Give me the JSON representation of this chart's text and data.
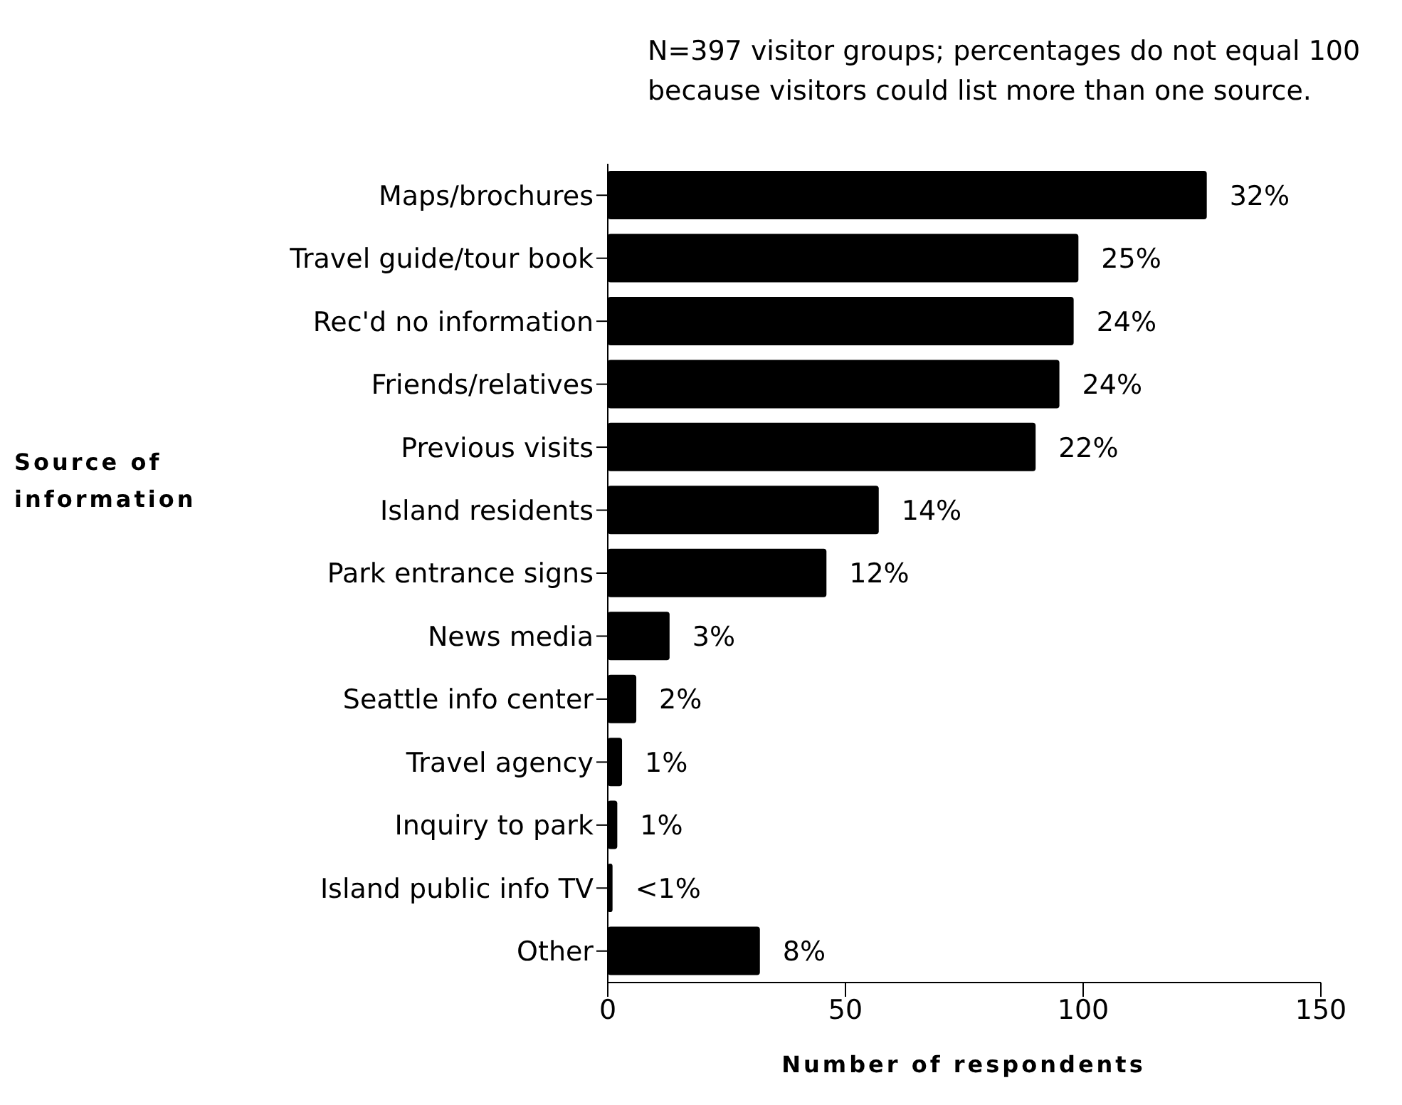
{
  "chart_data": {
    "type": "bar",
    "orientation": "horizontal",
    "xlabel": "Number of respondents",
    "ylabel": "Source of information",
    "annotations": [
      "N=397 visitor groups; percentages do not equal 100 because visitors could list more than one source.",
      {
        "text": "32%",
        "x": 126,
        "y": "Maps/brochures"
      },
      {
        "text": "25%",
        "x": 99,
        "y": "Travel guide/tour book"
      },
      {
        "text": "24%",
        "x": 98,
        "y": "Rec'd no information"
      },
      {
        "text": "24%",
        "x": 95,
        "y": "Friends/relatives"
      },
      {
        "text": "22%",
        "x": 90,
        "y": "Previous visits"
      },
      {
        "text": "14%",
        "x": 57,
        "y": "Island residents"
      },
      {
        "text": "12%",
        "x": 46,
        "y": "Park entrance signs"
      },
      {
        "text": "3%",
        "x": 13,
        "y": "News media"
      },
      {
        "text": "2%",
        "x": 6,
        "y": "Seattle info center"
      },
      {
        "text": "1%",
        "x": 3,
        "y": "Travel agency"
      },
      {
        "text": "1%",
        "x": 2,
        "y": "Inquiry to park"
      },
      {
        "text": "<1%",
        "x": 1,
        "y": "Island public info TV"
      },
      {
        "text": "8%",
        "x": 32,
        "y": "Other"
      }
    ],
    "categories": [
      "Maps/brochures",
      "Travel guide/tour book",
      "Rec'd no information",
      "Friends/relatives",
      "Previous visits",
      "Island residents",
      "Park entrance signs",
      "News media",
      "Seattle info center",
      "Travel agency",
      "Inquiry to park",
      "Island public info TV",
      "Other"
    ],
    "values": [
      126,
      99,
      98,
      95,
      90,
      57,
      46,
      13,
      6,
      3,
      2,
      1,
      32
    ],
    "color": "#000000",
    "xlim": [
      0,
      150
    ],
    "xticks": [
      0,
      50,
      100,
      150
    ],
    "grid": false,
    "legend": false
  }
}
